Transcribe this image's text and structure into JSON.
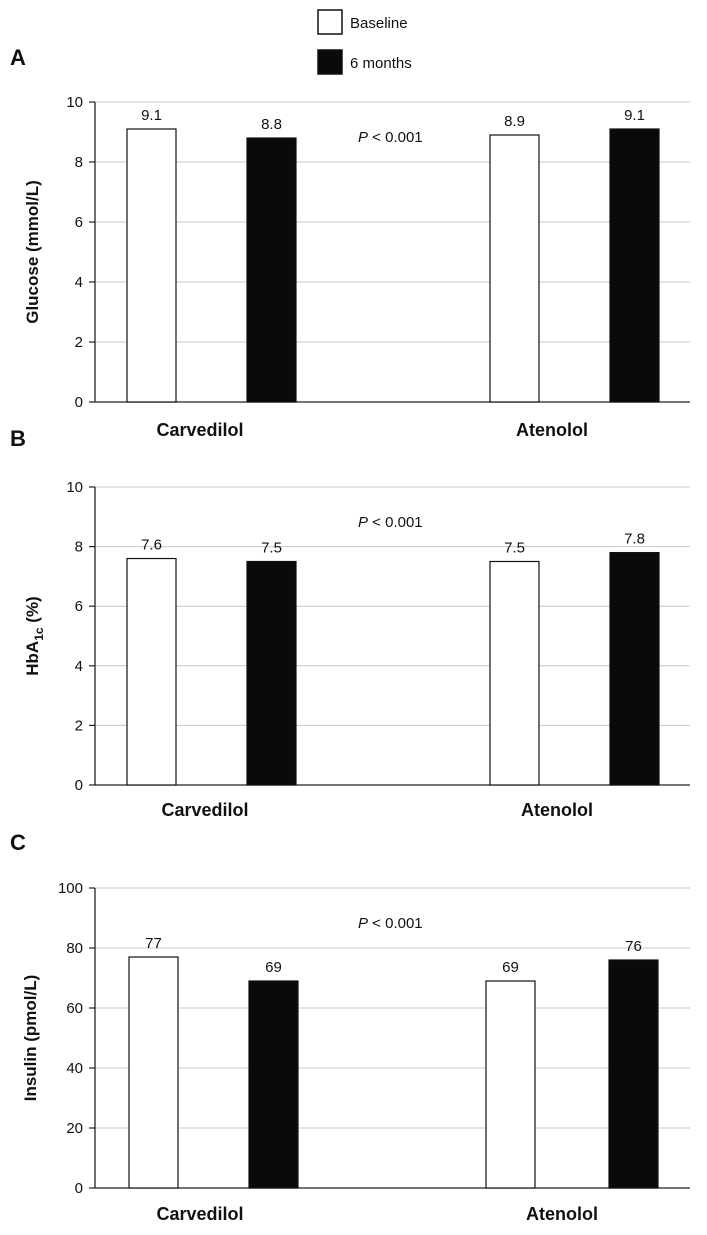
{
  "legend": [
    {
      "label": "Baseline",
      "color": "#ffffff"
    },
    {
      "label": "6 months",
      "color": "#0a0a0a"
    }
  ],
  "colors": {
    "baseline": "#ffffff",
    "six_months": "#0a0a0a",
    "grid": "#c8c8c8",
    "axis": "#222222"
  },
  "chart_data": [
    {
      "type": "bar",
      "panel": "A",
      "ylabel": "Glucose (mmol/L)",
      "categories": [
        "Carvedilol",
        "Atenolol"
      ],
      "series": [
        {
          "name": "Baseline",
          "values": [
            9.1,
            8.9
          ]
        },
        {
          "name": "6 months",
          "values": [
            8.8,
            9.1
          ]
        }
      ],
      "value_labels": [
        [
          "9.1",
          "8.8"
        ],
        [
          "8.9",
          "9.1"
        ]
      ],
      "ylim": [
        0,
        10
      ],
      "yticks": [
        0,
        2,
        4,
        6,
        8,
        10
      ],
      "grid": true,
      "annotation": {
        "italic": "P",
        "text": " < 0.001"
      }
    },
    {
      "type": "bar",
      "panel": "B",
      "ylabel": "HbA1c (%)",
      "ylabel_parts": {
        "main": "HbA",
        "sub": "1c",
        "rest": " (%)"
      },
      "categories": [
        "Carvedilol",
        "Atenolol"
      ],
      "series": [
        {
          "name": "Baseline",
          "values": [
            7.6,
            7.5
          ]
        },
        {
          "name": "6 months",
          "values": [
            7.5,
            7.8
          ]
        }
      ],
      "value_labels": [
        [
          "7.6",
          "7.5"
        ],
        [
          "7.5",
          "7.8"
        ]
      ],
      "ylim": [
        0,
        10
      ],
      "yticks": [
        0,
        2,
        4,
        6,
        8,
        10
      ],
      "grid": true,
      "annotation": {
        "italic": "P",
        "text": " < 0.001"
      }
    },
    {
      "type": "bar",
      "panel": "C",
      "ylabel": "Insulin (pmol/L)",
      "categories": [
        "Carvedilol",
        "Atenolol"
      ],
      "series": [
        {
          "name": "Baseline",
          "values": [
            77,
            69
          ]
        },
        {
          "name": "6 months",
          "values": [
            69,
            76
          ]
        }
      ],
      "value_labels": [
        [
          "77",
          "69"
        ],
        [
          "69",
          "76"
        ]
      ],
      "ylim": [
        0,
        100
      ],
      "yticks": [
        0,
        20,
        40,
        60,
        80,
        100
      ],
      "grid": true,
      "annotation": {
        "italic": "P",
        "text": " < 0.001"
      }
    }
  ]
}
